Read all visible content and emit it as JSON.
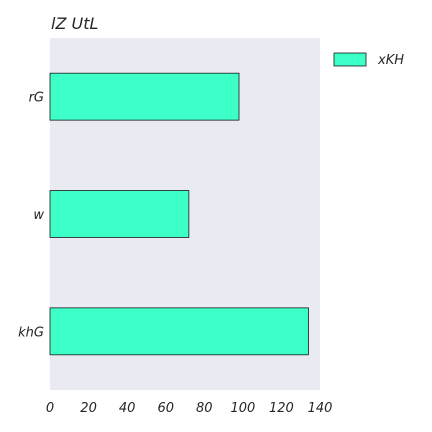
{
  "chart_data": {
    "type": "bar",
    "orientation": "horizontal",
    "title": "lZ UtL",
    "xlabel": "",
    "ylabel": "",
    "categories": [
      "rG",
      "w",
      "khG"
    ],
    "series": [
      {
        "name": "xKH",
        "values": [
          98,
          72,
          134
        ]
      }
    ],
    "xlim": [
      0,
      140
    ],
    "xticks": [
      0,
      20,
      40,
      60,
      80,
      100,
      120,
      140
    ],
    "xtick_labels": [
      "0",
      "20",
      "40",
      "60",
      "80",
      "100",
      "120",
      "140"
    ],
    "grid": false,
    "legend_position": "outside-top-right",
    "colors": {
      "bar_fill": "#3dffc8",
      "bar_edge": "#1a1a1a",
      "plot_background": "#eaeaf2"
    }
  }
}
